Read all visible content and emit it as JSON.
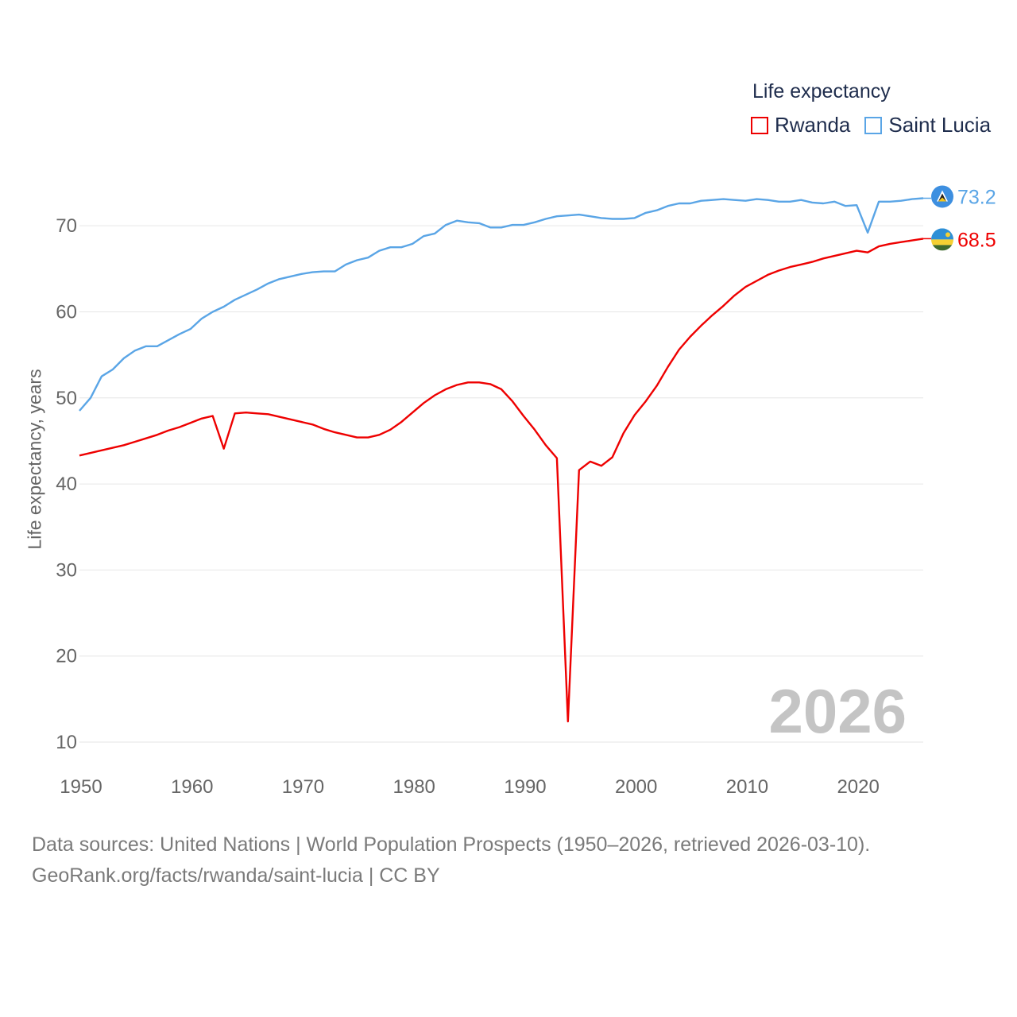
{
  "legend": {
    "title": "Life expectancy",
    "items": [
      {
        "name": "Rwanda",
        "color": "#ee0000"
      },
      {
        "name": "Saint Lucia",
        "color": "#5aa5e6"
      }
    ]
  },
  "year_display": "2026",
  "footer": {
    "line1": "Data sources: United Nations | World Population Prospects (1950–2026, retrieved 2026-03-10).",
    "line2": "GeoRank.org/facts/rwanda/saint-lucia | CC BY"
  },
  "chart_data": {
    "type": "line",
    "title": "Life expectancy",
    "xlabel": "",
    "ylabel": "Life expectancy, years",
    "xlim": [
      1950,
      2026
    ],
    "ylim": [
      10,
      75
    ],
    "x_ticks": [
      1950,
      1960,
      1970,
      1980,
      1990,
      2000,
      2010,
      2020
    ],
    "y_ticks": [
      10,
      20,
      30,
      40,
      50,
      60,
      70
    ],
    "grid": true,
    "legend_position": "top-right",
    "series": [
      {
        "name": "Rwanda",
        "color": "#ee0000",
        "end_label": "68.5",
        "flag_icon": "rwanda-flag-icon",
        "points": [
          [
            1950,
            43.3
          ],
          [
            1951,
            43.6
          ],
          [
            1952,
            43.9
          ],
          [
            1953,
            44.2
          ],
          [
            1954,
            44.5
          ],
          [
            1955,
            44.9
          ],
          [
            1956,
            45.3
          ],
          [
            1957,
            45.7
          ],
          [
            1958,
            46.2
          ],
          [
            1959,
            46.6
          ],
          [
            1960,
            47.1
          ],
          [
            1961,
            47.6
          ],
          [
            1962,
            47.9
          ],
          [
            1963,
            44.1
          ],
          [
            1964,
            48.2
          ],
          [
            1965,
            48.3
          ],
          [
            1966,
            48.2
          ],
          [
            1967,
            48.1
          ],
          [
            1968,
            47.8
          ],
          [
            1969,
            47.5
          ],
          [
            1970,
            47.2
          ],
          [
            1971,
            46.9
          ],
          [
            1972,
            46.4
          ],
          [
            1973,
            46.0
          ],
          [
            1974,
            45.7
          ],
          [
            1975,
            45.4
          ],
          [
            1976,
            45.4
          ],
          [
            1977,
            45.7
          ],
          [
            1978,
            46.3
          ],
          [
            1979,
            47.2
          ],
          [
            1980,
            48.3
          ],
          [
            1981,
            49.4
          ],
          [
            1982,
            50.3
          ],
          [
            1983,
            51.0
          ],
          [
            1984,
            51.5
          ],
          [
            1985,
            51.8
          ],
          [
            1986,
            51.8
          ],
          [
            1987,
            51.6
          ],
          [
            1988,
            51.0
          ],
          [
            1989,
            49.6
          ],
          [
            1990,
            47.9
          ],
          [
            1991,
            46.3
          ],
          [
            1992,
            44.5
          ],
          [
            1993,
            43.0
          ],
          [
            1994,
            12.4
          ],
          [
            1995,
            41.6
          ],
          [
            1996,
            42.6
          ],
          [
            1997,
            42.1
          ],
          [
            1998,
            43.1
          ],
          [
            1999,
            45.9
          ],
          [
            2000,
            48.0
          ],
          [
            2001,
            49.6
          ],
          [
            2002,
            51.4
          ],
          [
            2003,
            53.6
          ],
          [
            2004,
            55.6
          ],
          [
            2005,
            57.1
          ],
          [
            2006,
            58.4
          ],
          [
            2007,
            59.6
          ],
          [
            2008,
            60.7
          ],
          [
            2009,
            61.9
          ],
          [
            2010,
            62.9
          ],
          [
            2011,
            63.6
          ],
          [
            2012,
            64.3
          ],
          [
            2013,
            64.8
          ],
          [
            2014,
            65.2
          ],
          [
            2015,
            65.5
          ],
          [
            2016,
            65.8
          ],
          [
            2017,
            66.2
          ],
          [
            2018,
            66.5
          ],
          [
            2019,
            66.8
          ],
          [
            2020,
            67.1
          ],
          [
            2021,
            66.9
          ],
          [
            2022,
            67.6
          ],
          [
            2023,
            67.9
          ],
          [
            2024,
            68.1
          ],
          [
            2025,
            68.3
          ],
          [
            2026,
            68.5
          ]
        ]
      },
      {
        "name": "Saint Lucia",
        "color": "#5aa5e6",
        "end_label": "73.2",
        "flag_icon": "saint-lucia-flag-icon",
        "points": [
          [
            1950,
            48.5
          ],
          [
            1951,
            50.0
          ],
          [
            1952,
            52.5
          ],
          [
            1953,
            53.3
          ],
          [
            1954,
            54.6
          ],
          [
            1955,
            55.5
          ],
          [
            1956,
            56.0
          ],
          [
            1957,
            56.0
          ],
          [
            1958,
            56.7
          ],
          [
            1959,
            57.4
          ],
          [
            1960,
            58.0
          ],
          [
            1961,
            59.2
          ],
          [
            1962,
            60.0
          ],
          [
            1963,
            60.6
          ],
          [
            1964,
            61.4
          ],
          [
            1965,
            62.0
          ],
          [
            1966,
            62.6
          ],
          [
            1967,
            63.3
          ],
          [
            1968,
            63.8
          ],
          [
            1969,
            64.1
          ],
          [
            1970,
            64.4
          ],
          [
            1971,
            64.6
          ],
          [
            1972,
            64.7
          ],
          [
            1973,
            64.7
          ],
          [
            1974,
            65.5
          ],
          [
            1975,
            66.0
          ],
          [
            1976,
            66.3
          ],
          [
            1977,
            67.1
          ],
          [
            1978,
            67.5
          ],
          [
            1979,
            67.5
          ],
          [
            1980,
            67.9
          ],
          [
            1981,
            68.8
          ],
          [
            1982,
            69.1
          ],
          [
            1983,
            70.1
          ],
          [
            1984,
            70.6
          ],
          [
            1985,
            70.4
          ],
          [
            1986,
            70.3
          ],
          [
            1987,
            69.8
          ],
          [
            1988,
            69.8
          ],
          [
            1989,
            70.1
          ],
          [
            1990,
            70.1
          ],
          [
            1991,
            70.4
          ],
          [
            1992,
            70.8
          ],
          [
            1993,
            71.1
          ],
          [
            1994,
            71.2
          ],
          [
            1995,
            71.3
          ],
          [
            1996,
            71.1
          ],
          [
            1997,
            70.9
          ],
          [
            1998,
            70.8
          ],
          [
            1999,
            70.8
          ],
          [
            2000,
            70.9
          ],
          [
            2001,
            71.5
          ],
          [
            2002,
            71.8
          ],
          [
            2003,
            72.3
          ],
          [
            2004,
            72.6
          ],
          [
            2005,
            72.6
          ],
          [
            2006,
            72.9
          ],
          [
            2007,
            73.0
          ],
          [
            2008,
            73.1
          ],
          [
            2009,
            73.0
          ],
          [
            2010,
            72.9
          ],
          [
            2011,
            73.1
          ],
          [
            2012,
            73.0
          ],
          [
            2013,
            72.8
          ],
          [
            2014,
            72.8
          ],
          [
            2015,
            73.0
          ],
          [
            2016,
            72.7
          ],
          [
            2017,
            72.6
          ],
          [
            2018,
            72.8
          ],
          [
            2019,
            72.3
          ],
          [
            2020,
            72.4
          ],
          [
            2021,
            69.2
          ],
          [
            2022,
            72.8
          ],
          [
            2023,
            72.8
          ],
          [
            2024,
            72.9
          ],
          [
            2025,
            73.1
          ],
          [
            2026,
            73.2
          ]
        ]
      }
    ]
  }
}
